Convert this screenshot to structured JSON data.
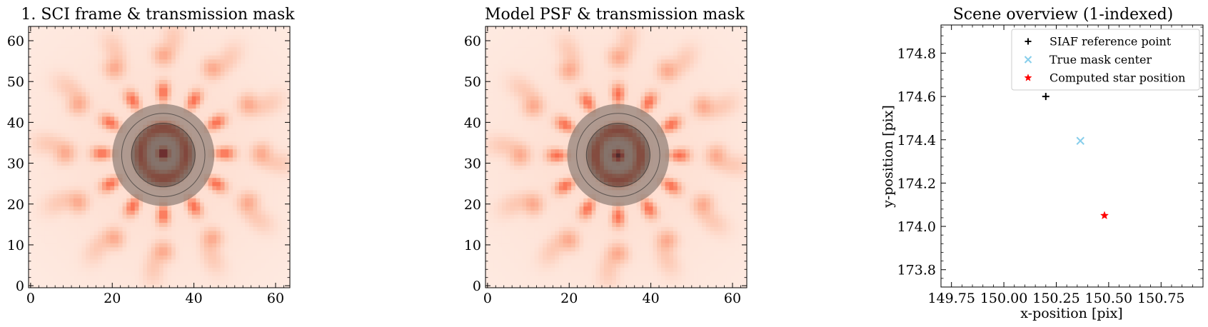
{
  "chart_data": [
    {
      "type": "heatmap",
      "title": "1. SCI frame & transmission mask",
      "xlabel": "",
      "ylabel": "",
      "xlim": [
        -0.5,
        63.5
      ],
      "ylim": [
        -0.5,
        63.5
      ],
      "grid_size": 64,
      "xticks": [
        "0",
        "20",
        "40",
        "60"
      ],
      "yticks": [
        "0",
        "10",
        "20",
        "30",
        "40",
        "50",
        "60"
      ],
      "colormap": "Reds",
      "peak": {
        "x": 32.5,
        "y": 32.5
      },
      "mask": {
        "center": [
          32.5,
          32.0
        ],
        "outer_radius": 12.5,
        "inner_radius": 7.8,
        "ring_radius": 10.2
      }
    },
    {
      "type": "heatmap",
      "title": "Model PSF & transmission mask",
      "xlabel": "",
      "ylabel": "",
      "xlim": [
        -0.5,
        63.5
      ],
      "ylim": [
        -0.5,
        63.5
      ],
      "grid_size": 64,
      "xticks": [
        "0",
        "20",
        "40",
        "60"
      ],
      "yticks": [
        "0",
        "10",
        "20",
        "30",
        "40",
        "50",
        "60"
      ],
      "colormap": "Reds",
      "peak": {
        "x": 32.0,
        "y": 32.0
      },
      "mask": {
        "center": [
          32.0,
          32.0
        ],
        "outer_radius": 12.5,
        "inner_radius": 7.8,
        "ring_radius": 10.2
      }
    },
    {
      "type": "scatter",
      "title": "Scene overview (1-indexed)",
      "xlabel": "x-position [pix]",
      "ylabel": "y-position [pix]",
      "xlim": [
        149.7,
        150.95
      ],
      "ylim": [
        173.72,
        174.93
      ],
      "xticks": [
        149.75,
        150.0,
        150.25,
        150.5,
        150.75
      ],
      "xtick_labels": [
        "149.75",
        "150.00",
        "150.25",
        "150.50",
        "150.75"
      ],
      "yticks": [
        173.8,
        174.0,
        174.2,
        174.4,
        174.6,
        174.8
      ],
      "ytick_labels": [
        "173.8",
        "174.0",
        "174.2",
        "174.4",
        "174.6",
        "174.8"
      ],
      "legend_position": "upper-right",
      "series": [
        {
          "name": "SIAF reference point",
          "marker": "plus",
          "color": "#000000",
          "x": 150.2,
          "y": 174.6
        },
        {
          "name": "True mask center",
          "marker": "x",
          "color": "#87ceeb",
          "x": 150.365,
          "y": 174.395
        },
        {
          "name": "Computed star position",
          "marker": "star",
          "color": "#ff0000",
          "x": 150.48,
          "y": 174.05
        }
      ]
    }
  ]
}
